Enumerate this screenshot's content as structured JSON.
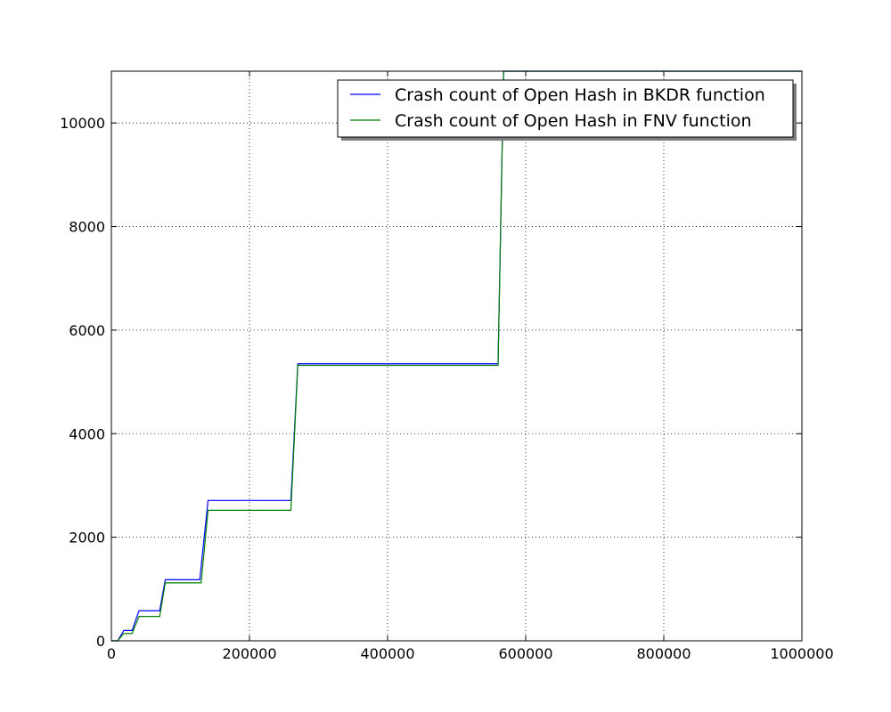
{
  "chart_data": {
    "type": "line",
    "title": "",
    "xlabel": "",
    "ylabel": "",
    "xlim": [
      0,
      1000000
    ],
    "ylim": [
      0,
      11000
    ],
    "x_ticks": [
      0,
      200000,
      400000,
      600000,
      800000,
      1000000
    ],
    "x_tick_labels": [
      "0",
      "200000",
      "400000",
      "600000",
      "800000",
      "1000000"
    ],
    "y_ticks": [
      0,
      2000,
      4000,
      6000,
      8000,
      10000
    ],
    "y_tick_labels": [
      "0",
      "2000",
      "4000",
      "6000",
      "8000",
      "10000"
    ],
    "grid": true,
    "legend_position": "top-right",
    "series": [
      {
        "name": "Crash count of Open Hash in BKDR function",
        "color": "#0000ff",
        "x": [
          0,
          9000,
          18000,
          30000,
          40000,
          70000,
          78000,
          128000,
          140000,
          260000,
          270000,
          560000,
          568000,
          1000000
        ],
        "y": [
          0,
          0,
          200,
          200,
          580,
          580,
          1180,
          1180,
          2710,
          2710,
          5350,
          5350,
          11000,
          11000
        ]
      },
      {
        "name": "Crash count of Open Hash in FNV function",
        "color": "#008000",
        "x": [
          0,
          9000,
          18000,
          30000,
          40000,
          70000,
          78000,
          130000,
          140000,
          260000,
          270000,
          560000,
          568000,
          1000000
        ],
        "y": [
          0,
          0,
          140,
          140,
          470,
          470,
          1120,
          1120,
          2520,
          2520,
          5320,
          5320,
          11000,
          11000
        ]
      }
    ]
  }
}
